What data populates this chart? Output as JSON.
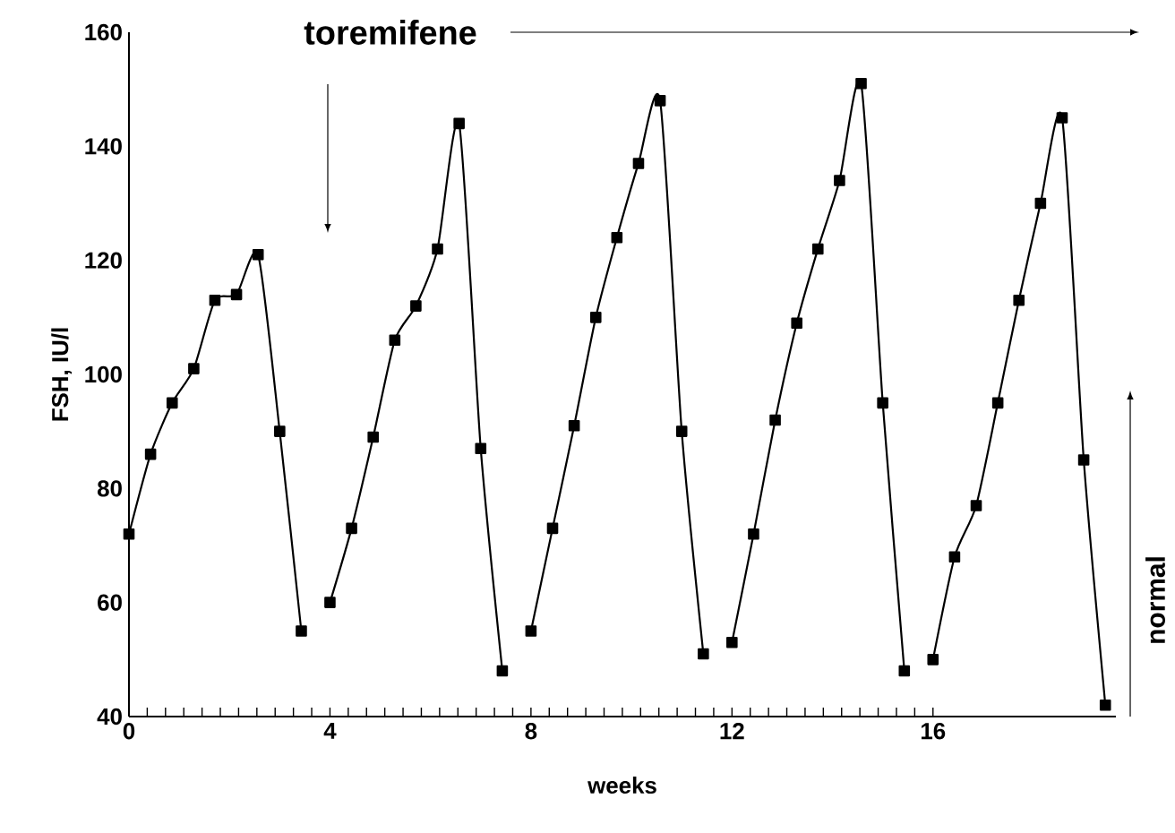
{
  "chart_data": {
    "type": "line",
    "xlabel": "weeks",
    "ylabel": "FSH, IU/l",
    "xlim": [
      0,
      19.64
    ],
    "ylim": [
      40,
      160
    ],
    "xticks": [
      0,
      4,
      8,
      12,
      16
    ],
    "yticks": [
      40,
      60,
      80,
      100,
      120,
      140,
      160
    ],
    "marker": "square",
    "annotations": [
      "toremifene",
      "normal"
    ],
    "series": [
      {
        "color": "#000000",
        "x": [
          0,
          0.43,
          0.86,
          1.29,
          1.71,
          2.14,
          2.57,
          3,
          3.43
        ],
        "values": [
          72,
          86,
          95,
          101,
          113,
          114,
          121,
          90,
          55
        ]
      },
      {
        "color": "#000000",
        "x": [
          4,
          4.43,
          4.86,
          5.29,
          5.71,
          6.14,
          6.57,
          7,
          7.43
        ],
        "values": [
          60,
          73,
          89,
          106,
          112,
          122,
          144,
          87,
          48
        ]
      },
      {
        "color": "#000000",
        "x": [
          8,
          8.43,
          8.86,
          9.29,
          9.71,
          10.14,
          10.57,
          11,
          11.43
        ],
        "values": [
          55,
          73,
          91,
          110,
          124,
          137,
          148,
          90,
          51
        ]
      },
      {
        "color": "#000000",
        "x": [
          12,
          12.43,
          12.86,
          13.29,
          13.71,
          14.14,
          14.57,
          15,
          15.43
        ],
        "values": [
          53,
          72,
          92,
          109,
          122,
          134,
          151,
          95,
          48
        ]
      },
      {
        "color": "#000000",
        "x": [
          16,
          16.43,
          16.86,
          17.29,
          17.71,
          18.14,
          18.57,
          19,
          19.43
        ],
        "values": [
          50,
          68,
          77,
          95,
          113,
          130,
          145,
          85,
          42
        ]
      }
    ]
  }
}
